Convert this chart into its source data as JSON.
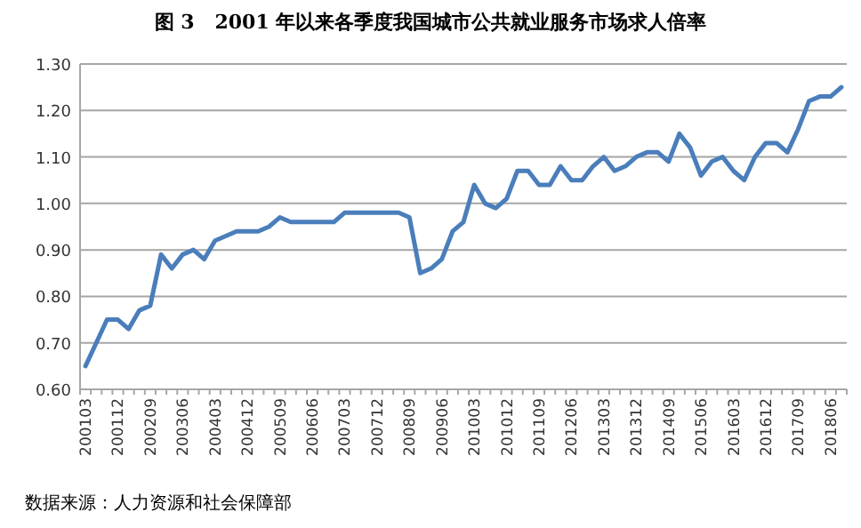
{
  "chart_data": {
    "type": "line",
    "title": "图 3   2001 年以来各季度我国城市公共就业服务市场求人倍率",
    "categories": [
      "200103",
      null,
      null,
      "200112",
      null,
      null,
      "200209",
      null,
      null,
      "200306",
      null,
      null,
      "200403",
      null,
      null,
      "200412",
      null,
      null,
      "200509",
      null,
      null,
      "200606",
      null,
      null,
      "200703",
      null,
      null,
      "200712",
      null,
      null,
      "200809",
      null,
      null,
      "200906",
      null,
      null,
      "201003",
      null,
      null,
      "201012",
      null,
      null,
      "201109",
      null,
      null,
      "201206",
      null,
      null,
      "201303",
      null,
      null,
      "201312",
      null,
      null,
      "201409",
      null,
      null,
      "201506",
      null,
      null,
      "201603",
      null,
      null,
      "201612",
      null,
      null,
      "201709",
      null,
      null,
      "201806",
      null
    ],
    "series": [
      {
        "color": "#4a7ebb",
        "values": [
          0.65,
          0.7,
          0.75,
          0.75,
          0.73,
          0.77,
          0.78,
          0.89,
          0.86,
          0.89,
          0.9,
          0.88,
          0.92,
          0.93,
          0.94,
          0.94,
          0.94,
          0.95,
          0.97,
          0.96,
          0.96,
          0.96,
          0.96,
          0.96,
          0.98,
          0.98,
          0.98,
          0.98,
          0.98,
          0.98,
          0.97,
          0.85,
          0.86,
          0.88,
          0.94,
          0.96,
          1.04,
          1.0,
          0.99,
          1.01,
          1.07,
          1.07,
          1.04,
          1.04,
          1.08,
          1.05,
          1.05,
          1.08,
          1.1,
          1.07,
          1.08,
          1.1,
          1.11,
          1.11,
          1.09,
          1.15,
          1.12,
          1.06,
          1.09,
          1.1,
          1.07,
          1.05,
          1.1,
          1.13,
          1.13,
          1.11,
          1.16,
          1.22,
          1.23,
          1.23,
          1.25
        ]
      }
    ],
    "ylim": [
      0.6,
      1.3
    ],
    "yticks": [
      {
        "value": 0.6,
        "label": "0.60"
      },
      {
        "value": 0.7,
        "label": "0.70"
      },
      {
        "value": 0.8,
        "label": "0.80"
      },
      {
        "value": 0.9,
        "label": "0.90"
      },
      {
        "value": 1.0,
        "label": "1.00"
      },
      {
        "value": 1.1,
        "label": "1.10"
      },
      {
        "value": 1.2,
        "label": "1.20"
      },
      {
        "value": 1.3,
        "label": "1.30"
      }
    ],
    "grid": "y",
    "marker": "none",
    "line_style": "solid",
    "annotations": [
      "数据来源：人力资源和社会保障部"
    ]
  }
}
